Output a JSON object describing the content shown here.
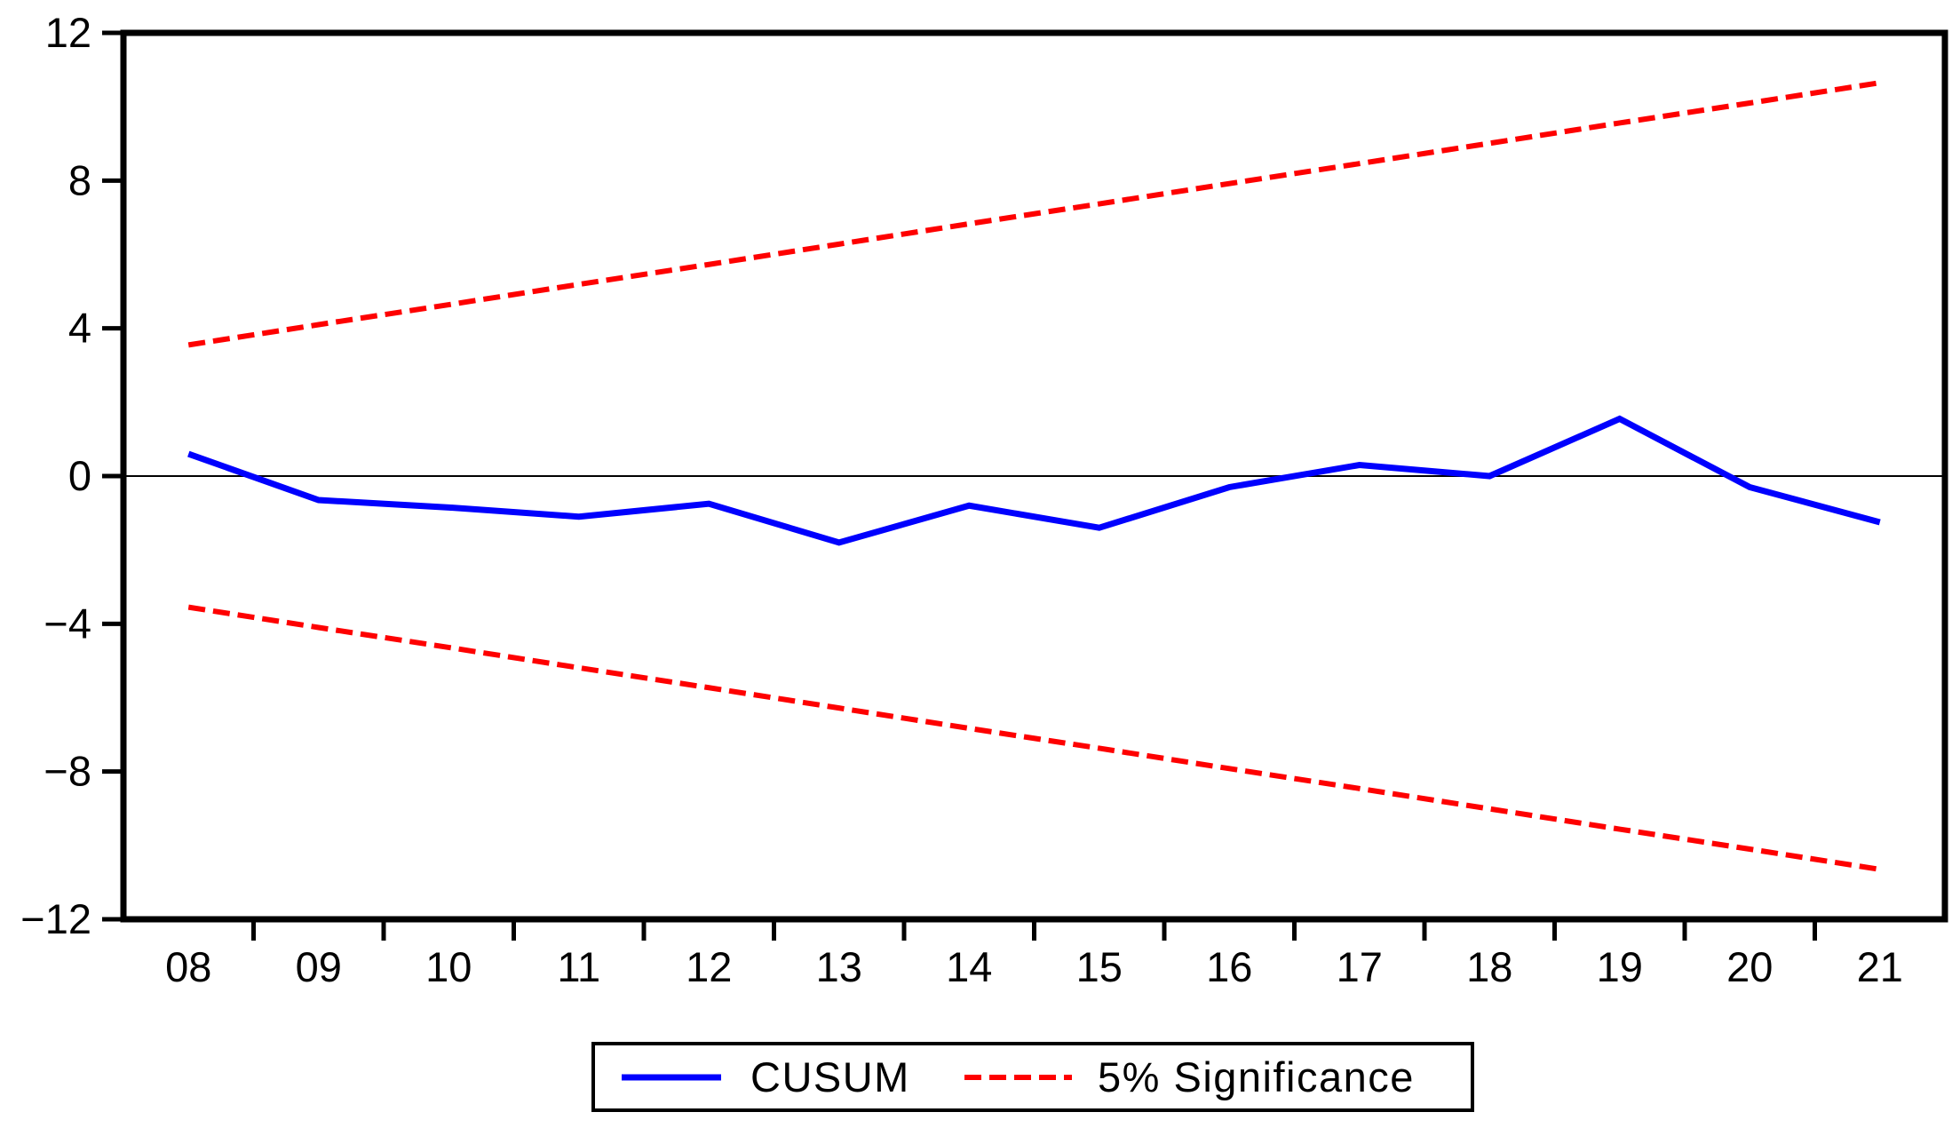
{
  "chart_data": {
    "type": "line",
    "title": "",
    "x_categories": [
      "08",
      "09",
      "10",
      "11",
      "12",
      "13",
      "14",
      "15",
      "16",
      "17",
      "18",
      "19",
      "20",
      "21"
    ],
    "series": [
      {
        "name": "CUSUM",
        "color": "#0000fe",
        "line_style": "solid",
        "values": [
          0.6,
          -0.65,
          -0.85,
          -1.1,
          -0.75,
          -1.8,
          -0.8,
          -1.4,
          -0.3,
          0.3,
          0.0,
          1.55,
          -0.3,
          -1.25
        ]
      },
      {
        "name": "5% Significance upper bound",
        "color": "#fe0000",
        "line_style": "dashed",
        "values": [
          3.55,
          4.1,
          4.64,
          5.19,
          5.73,
          6.28,
          6.83,
          7.37,
          7.92,
          8.46,
          9.01,
          9.56,
          10.1,
          10.65
        ]
      },
      {
        "name": "5% Significance lower bound",
        "color": "#fe0000",
        "line_style": "dashed",
        "values": [
          -3.55,
          -4.1,
          -4.64,
          -5.19,
          -5.73,
          -6.28,
          -6.83,
          -7.37,
          -7.92,
          -8.46,
          -9.01,
          -9.56,
          -10.1,
          -10.65
        ]
      }
    ],
    "y_tick_labels": [
      "12",
      "8",
      "4",
      "0",
      "−4",
      "−8",
      "−12"
    ],
    "y_tick_values": [
      12,
      8,
      4,
      0,
      -4,
      -8,
      -12
    ],
    "ylim": [
      -12,
      12
    ],
    "zero_line": true,
    "grid": false,
    "legend_position": "bottom-center",
    "legend": [
      {
        "label": "CUSUM",
        "color": "#0000fe",
        "line_style": "solid"
      },
      {
        "label": "5% Significance",
        "color": "#fe0000",
        "line_style": "dashed"
      }
    ],
    "colors": {
      "axis": "#000000",
      "zero_line": "#000000",
      "background": "#ffffff"
    }
  }
}
